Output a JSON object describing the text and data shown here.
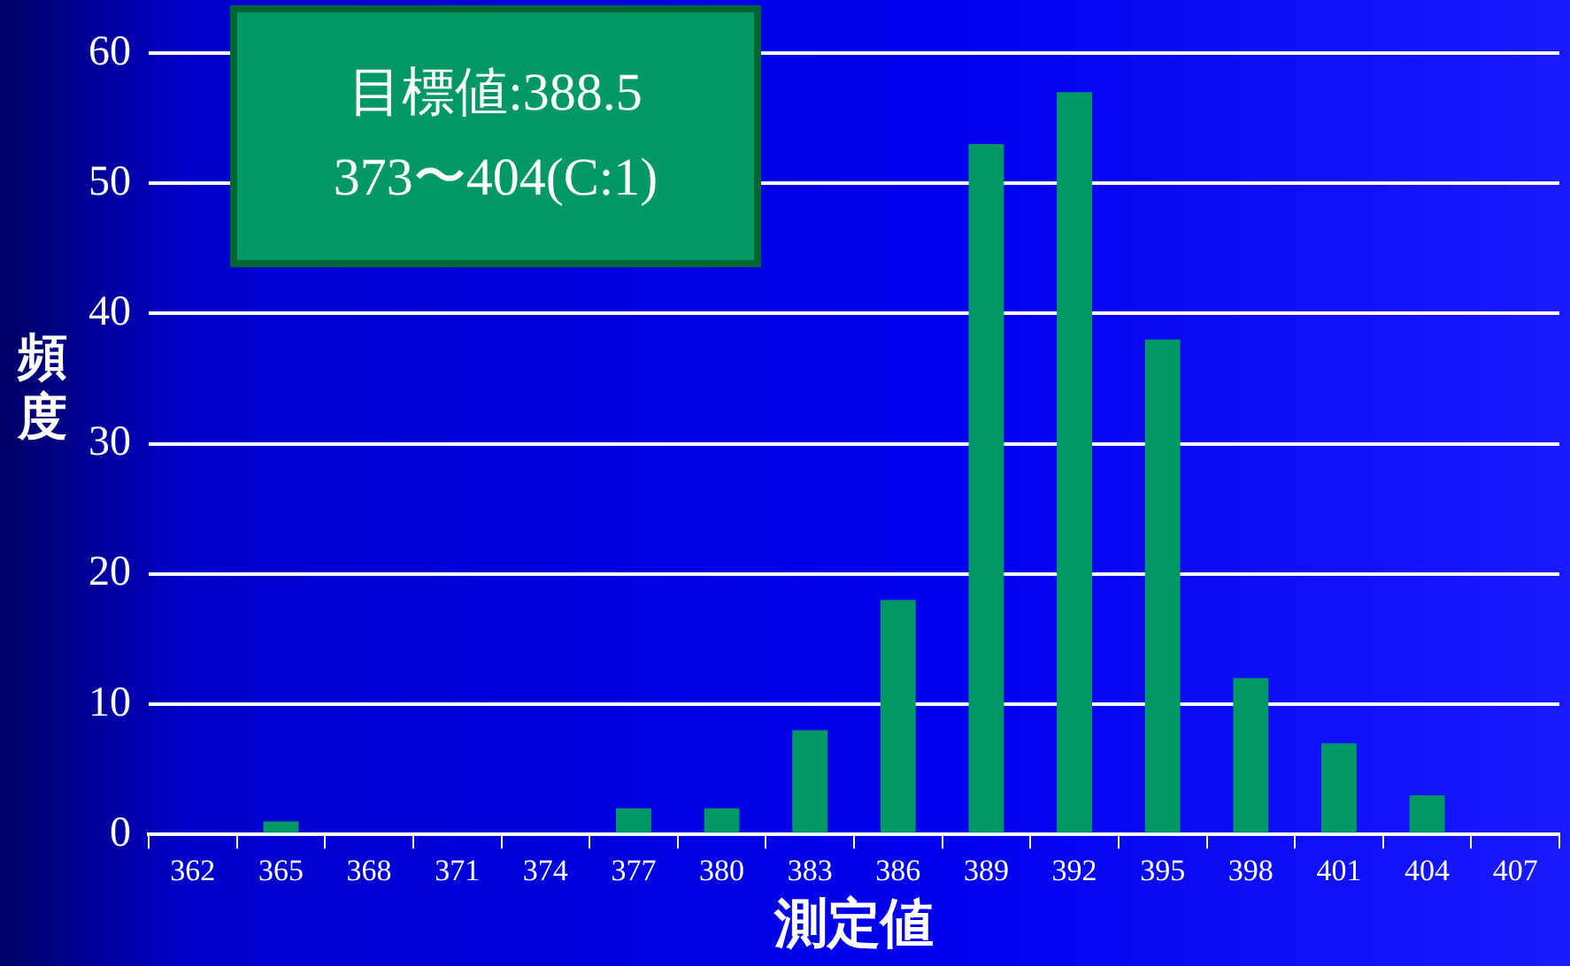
{
  "chart_data": {
    "type": "bar",
    "xlabel": "測定値",
    "ylabel": "頻度",
    "annotations": [
      "目標値:388.5",
      "373〜404(C:1)"
    ],
    "categories": [
      "362",
      "365",
      "368",
      "371",
      "374",
      "377",
      "380",
      "383",
      "386",
      "389",
      "392",
      "395",
      "398",
      "401",
      "404",
      "407"
    ],
    "values": [
      0,
      1,
      0,
      0,
      0,
      2,
      2,
      8,
      18,
      53,
      57,
      38,
      12,
      7,
      3,
      0
    ],
    "color": "#009966",
    "ylim": [
      0,
      60
    ],
    "yticks": [
      0,
      10,
      20,
      30,
      40,
      50,
      60
    ],
    "grid": "y",
    "legend": false
  }
}
